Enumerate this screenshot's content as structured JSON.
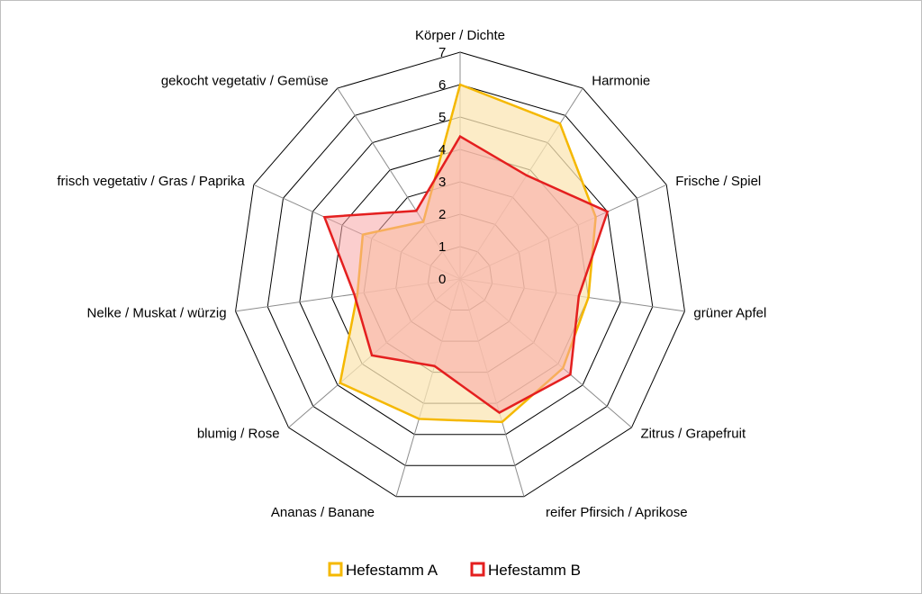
{
  "chart_data": {
    "type": "radar",
    "axes": [
      "Körper / Dichte",
      "Harmonie",
      "Frische / Spiel",
      "grüner Apfel",
      "Zitrus / Grapefruit",
      "reifer Pfirsich / Aprikose",
      "Ananas / Banane",
      "blumig / Rose",
      "Nelke / Muskat / würzig",
      "frisch vegetativ / Gras / Paprika",
      "gekocht vegetativ / Gemüse"
    ],
    "rlim": [
      0,
      7
    ],
    "ticks": [
      "0",
      "1",
      "2",
      "3",
      "4",
      "5",
      "6",
      "7"
    ],
    "series": [
      {
        "name": "Hefestamm A",
        "color": "#f5b800",
        "fill": "#fbe6b4",
        "values": [
          6.0,
          5.7,
          4.6,
          4.0,
          4.2,
          4.6,
          4.5,
          4.9,
          3.2,
          3.3,
          2.1
        ]
      },
      {
        "name": "Hefestamm B",
        "color": "#e41f1f",
        "fill": "#f7a6a6",
        "values": [
          4.4,
          3.8,
          5.0,
          3.7,
          4.5,
          4.3,
          2.8,
          3.6,
          3.3,
          4.6,
          2.5
        ]
      }
    ],
    "legend": "bottom",
    "grid": true
  }
}
